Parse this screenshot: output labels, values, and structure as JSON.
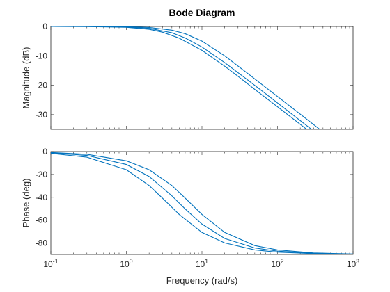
{
  "chart_data": {
    "type": "line",
    "title": "Bode Diagram",
    "xlabel": "Frequency (rad/s)",
    "x_scale": "log",
    "xlim": [
      0.1,
      1000
    ],
    "x_ticks": [
      {
        "value": 0.1,
        "base": "10",
        "exp": "-1"
      },
      {
        "value": 1,
        "base": "10",
        "exp": "0"
      },
      {
        "value": 10,
        "base": "10",
        "exp": "1"
      },
      {
        "value": 100,
        "base": "10",
        "exp": "2"
      },
      {
        "value": 1000,
        "base": "10",
        "exp": "3"
      }
    ],
    "grid": false,
    "color": "#0072BD",
    "panels": [
      {
        "name": "magnitude",
        "ylabel": "Magnitude (dB)",
        "ylim": [
          -35,
          0
        ],
        "y_ticks": [
          0,
          -10,
          -20,
          -30
        ],
        "series": [
          {
            "values": [
              [
                0.1,
                0
              ],
              [
                0.3,
                -0.03
              ],
              [
                1,
                -0.27
              ],
              [
                2,
                -0.97
              ],
              [
                3,
                -1.94
              ],
              [
                5,
                -3.98
              ],
              [
                10,
                -8.13
              ],
              [
                20,
                -13.52
              ],
              [
                30,
                -16.95
              ],
              [
                50,
                -21.41
              ],
              [
                100,
                -27.34
              ],
              [
                200,
                -33.31
              ],
              [
                300,
                -36.83
              ]
            ]
          },
          {
            "values": [
              [
                0.1,
                0
              ],
              [
                0.3,
                -0.02
              ],
              [
                1,
                -0.17
              ],
              [
                2,
                -0.64
              ],
              [
                4,
                -2.15
              ],
              [
                6,
                -3.93
              ],
              [
                10,
                -6.99
              ],
              [
                20,
                -12.3
              ],
              [
                40,
                -18.13
              ],
              [
                70,
                -22.92
              ],
              [
                100,
                -26.02
              ],
              [
                200,
                -32.04
              ],
              [
                400,
                -38.06
              ]
            ]
          },
          {
            "values": [
              [
                0.1,
                0
              ],
              [
                0.3,
                -0.01
              ],
              [
                1,
                -0.09
              ],
              [
                2,
                -0.34
              ],
              [
                4,
                -1.25
              ],
              [
                6,
                -2.47
              ],
              [
                10,
                -5.0
              ],
              [
                20,
                -10.0
              ],
              [
                40,
                -15.91
              ],
              [
                70,
                -20.77
              ],
              [
                100,
                -23.85
              ],
              [
                200,
                -29.85
              ],
              [
                400,
                -35.87
              ]
            ]
          }
        ]
      },
      {
        "name": "phase",
        "ylabel": "Phase (deg)",
        "ylim": [
          -90,
          0
        ],
        "y_ticks": [
          0,
          -20,
          -40,
          -60,
          -80
        ],
        "series": [
          {
            "values": [
              [
                0.1,
                -1.6
              ],
              [
                0.3,
                -4.9
              ],
              [
                1,
                -15.9
              ],
              [
                2,
                -29.7
              ],
              [
                3,
                -40.7
              ],
              [
                5,
                -55.0
              ],
              [
                10,
                -70.7
              ],
              [
                20,
                -79.9
              ],
              [
                50,
                -86.0
              ],
              [
                100,
                -88.0
              ],
              [
                300,
                -89.3
              ],
              [
                1000,
                -89.8
              ]
            ]
          },
          {
            "values": [
              [
                0.1,
                -1.1
              ],
              [
                0.3,
                -3.4
              ],
              [
                1,
                -11.3
              ],
              [
                2,
                -21.8
              ],
              [
                4,
                -38.7
              ],
              [
                6,
                -50.2
              ],
              [
                10,
                -63.4
              ],
              [
                20,
                -76.0
              ],
              [
                50,
                -84.3
              ],
              [
                100,
                -87.1
              ],
              [
                300,
                -89.0
              ],
              [
                1000,
                -89.7
              ]
            ]
          },
          {
            "values": [
              [
                0.1,
                -0.8
              ],
              [
                0.3,
                -2.4
              ],
              [
                1,
                -8.1
              ],
              [
                2,
                -15.9
              ],
              [
                4,
                -29.7
              ],
              [
                6,
                -40.7
              ],
              [
                10,
                -55.0
              ],
              [
                20,
                -70.7
              ],
              [
                50,
                -82.2
              ],
              [
                100,
                -86.0
              ],
              [
                300,
                -88.7
              ],
              [
                1000,
                -89.6
              ]
            ]
          }
        ]
      }
    ]
  }
}
